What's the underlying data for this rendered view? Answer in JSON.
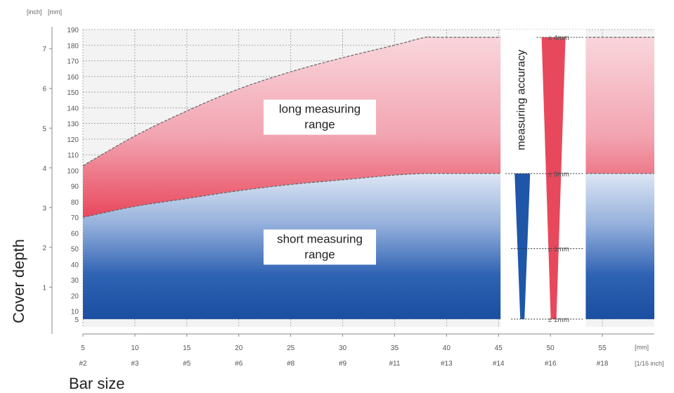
{
  "chart_data": {
    "type": "area",
    "x": [
      5,
      10,
      15,
      20,
      25,
      30,
      35,
      38,
      40,
      55
    ],
    "x_range": [
      5,
      60
    ],
    "y_range": [
      0,
      190
    ],
    "x_ticks_mm": [
      "5",
      "10",
      "15",
      "20",
      "25",
      "30",
      "35",
      "40",
      "45",
      "50",
      "55"
    ],
    "x_ticks_bar": [
      "#2",
      "#3",
      "#5",
      "#6",
      "#8",
      "#9",
      "#11",
      "#13",
      "#14",
      "#16",
      "#18"
    ],
    "y_ticks_mm": [
      "5",
      "10",
      "20",
      "30",
      "40",
      "50",
      "60",
      "70",
      "80",
      "90",
      "100",
      "110",
      "120",
      "130",
      "140",
      "150",
      "160",
      "170",
      "180",
      "190"
    ],
    "y_ticks_inch": [
      "1",
      "2",
      "3",
      "4",
      "5",
      "6",
      "7"
    ],
    "series": [
      {
        "name": "short measuring range",
        "values": [
          70,
          77,
          82,
          87,
          91,
          94,
          97,
          98,
          98,
          98
        ],
        "color": "#1f56a8"
      },
      {
        "name": "long measuring range",
        "values": [
          103,
          122,
          138,
          152,
          163,
          172,
          180,
          185,
          185,
          185
        ],
        "color": "#e8485c"
      }
    ],
    "accuracy": {
      "title": "measuring accuracy",
      "labels": [
        "± 4mm",
        "± 3mm",
        "± 1mm",
        "± 1mm"
      ],
      "levels_mm": [
        185,
        98,
        50,
        5
      ]
    },
    "region_labels": {
      "long": [
        "long measuring",
        "range"
      ],
      "short": [
        "short measuring",
        "range"
      ]
    },
    "axis_labels": {
      "y_title": "Cover depth",
      "x_title": "Bar size",
      "y_unit_inch": "[inch]",
      "y_unit_mm": "[mm]",
      "x_unit_mm": "[mm]",
      "x_unit_bar": "[1/16 inch]"
    },
    "grid": true
  }
}
